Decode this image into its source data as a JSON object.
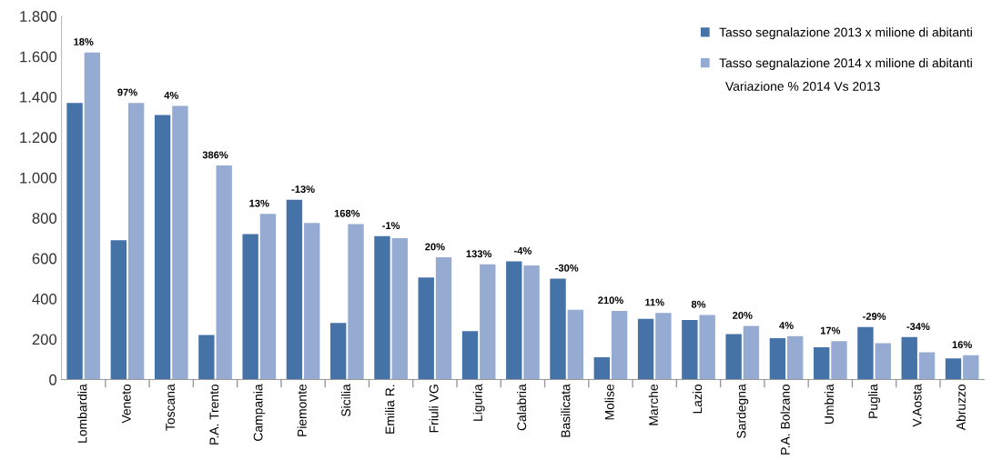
{
  "chart_data": {
    "type": "bar",
    "categories": [
      "Lombardia",
      "Veneto",
      "Toscana",
      "P.A. Trento",
      "Campania",
      "Piemonte",
      "Sicilia",
      "Emilia R.",
      "Friuli VG",
      "Liguria",
      "Calabria",
      "Basilicata",
      "Molise",
      "Marche",
      "Lazio",
      "Sardegna",
      "P.A. Bolzano",
      "Umbria",
      "Puglia",
      "V.Aosta",
      "Abruzzo"
    ],
    "series": [
      {
        "name": "Tasso segnalazione 2013 x milione di abitanti",
        "color": "#4572a7",
        "values": [
          1370,
          690,
          1310,
          220,
          720,
          890,
          280,
          710,
          505,
          240,
          585,
          500,
          110,
          300,
          295,
          225,
          205,
          160,
          260,
          210,
          105
        ]
      },
      {
        "name": "Tasso segnalazione 2014 x milione di abitanti",
        "color": "#95abd2",
        "values": [
          1620,
          1370,
          1355,
          1060,
          820,
          775,
          770,
          700,
          605,
          570,
          565,
          345,
          340,
          330,
          320,
          265,
          215,
          190,
          180,
          135,
          120
        ]
      }
    ],
    "ylim": [
      0,
      1800
    ],
    "yticks": [
      0,
      {
        "value": 200,
        "label": "200"
      },
      {
        "value": 400,
        "label": "400"
      },
      {
        "value": 600,
        "label": "600"
      },
      {
        "value": 800,
        "label": "800"
      },
      {
        "value": 1000,
        "label": "1.000"
      },
      {
        "value": 1200,
        "label": "1.200"
      },
      {
        "value": 1400,
        "label": "1.400"
      },
      {
        "value": 1600,
        "label": "1.600"
      },
      {
        "value": 1800,
        "label": "1.800"
      }
    ],
    "grid": false,
    "legend": "top right",
    "annotations": [
      "Variazione % 2014 Vs 2013",
      {
        "text": "18%",
        "x": "Lombardia",
        "y": 1620
      },
      {
        "text": "97%",
        "x": "Veneto",
        "y": 1370
      },
      {
        "text": "4%",
        "x": "Toscana",
        "y": 1355
      },
      {
        "text": "386%",
        "x": "P.A. Trento",
        "y": 1060
      },
      {
        "text": "13%",
        "x": "Campania",
        "y": 820
      },
      {
        "text": "-13%",
        "x": "Piemonte",
        "y": 890
      },
      {
        "text": "168%",
        "x": "Sicilia",
        "y": 770
      },
      {
        "text": "-1%",
        "x": "Emilia R.",
        "y": 710
      },
      {
        "text": "20%",
        "x": "Friuli VG",
        "y": 605
      },
      {
        "text": "133%",
        "x": "Liguria",
        "y": 570
      },
      {
        "text": "-4%",
        "x": "Calabria",
        "y": 585
      },
      {
        "text": "-30%",
        "x": "Basilicata",
        "y": 500
      },
      {
        "text": "210%",
        "x": "Molise",
        "y": 340
      },
      {
        "text": "11%",
        "x": "Marche",
        "y": 330
      },
      {
        "text": "8%",
        "x": "Lazio",
        "y": 320
      },
      {
        "text": "20%",
        "x": "Sardegna",
        "y": 265
      },
      {
        "text": "4%",
        "x": "P.A. Bolzano",
        "y": 215
      },
      {
        "text": "17%",
        "x": "Umbria",
        "y": 190
      },
      {
        "text": "-29%",
        "x": "Puglia",
        "y": 260
      },
      {
        "text": "-34%",
        "x": "V.Aosta",
        "y": 210
      },
      {
        "text": "16%",
        "x": "Abruzzo",
        "y": 120
      }
    ]
  }
}
